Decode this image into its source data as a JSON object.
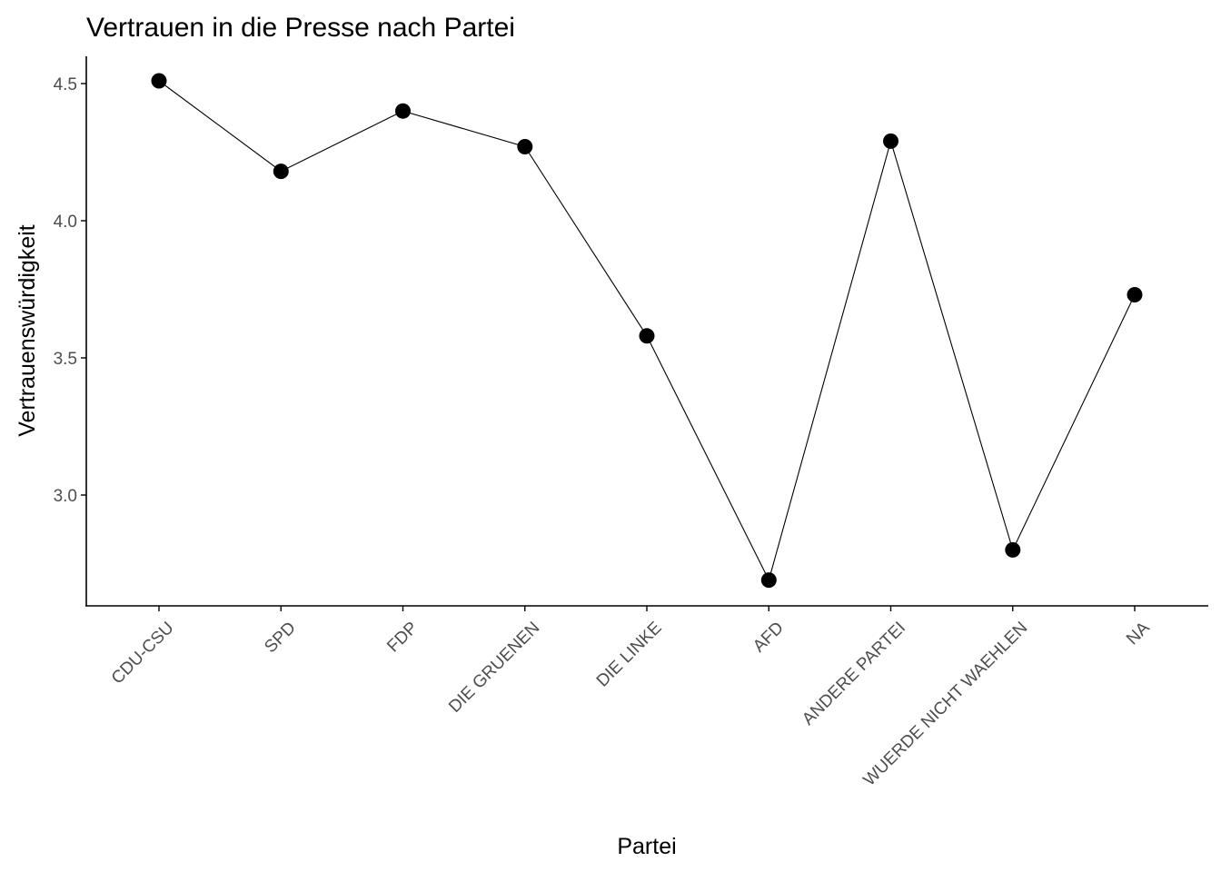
{
  "chart_data": {
    "type": "line",
    "title": "Vertrauen in die Presse nach Partei",
    "xlabel": "Partei",
    "ylabel": "Vertrauenswürdigkeit",
    "categories": [
      "CDU-CSU",
      "SPD",
      "FDP",
      "DIE GRUENEN",
      "DIE LINKE",
      "AFD",
      "ANDERE PARTEI",
      "WUERDE NICHT WAEHLEN",
      "NA"
    ],
    "values": [
      4.51,
      4.18,
      4.4,
      4.27,
      3.58,
      2.69,
      4.29,
      2.8,
      3.73
    ],
    "ylim": [
      2.6,
      4.6
    ],
    "yticks": [
      3.0,
      3.5,
      4.0,
      4.5
    ],
    "ytick_labels": [
      "3.0",
      "3.5",
      "4.0",
      "4.5"
    ],
    "grid": false,
    "legend": "none",
    "colors": {
      "line": "#000000",
      "points": "#000000",
      "tick_labels": "#4d4d4d"
    }
  }
}
